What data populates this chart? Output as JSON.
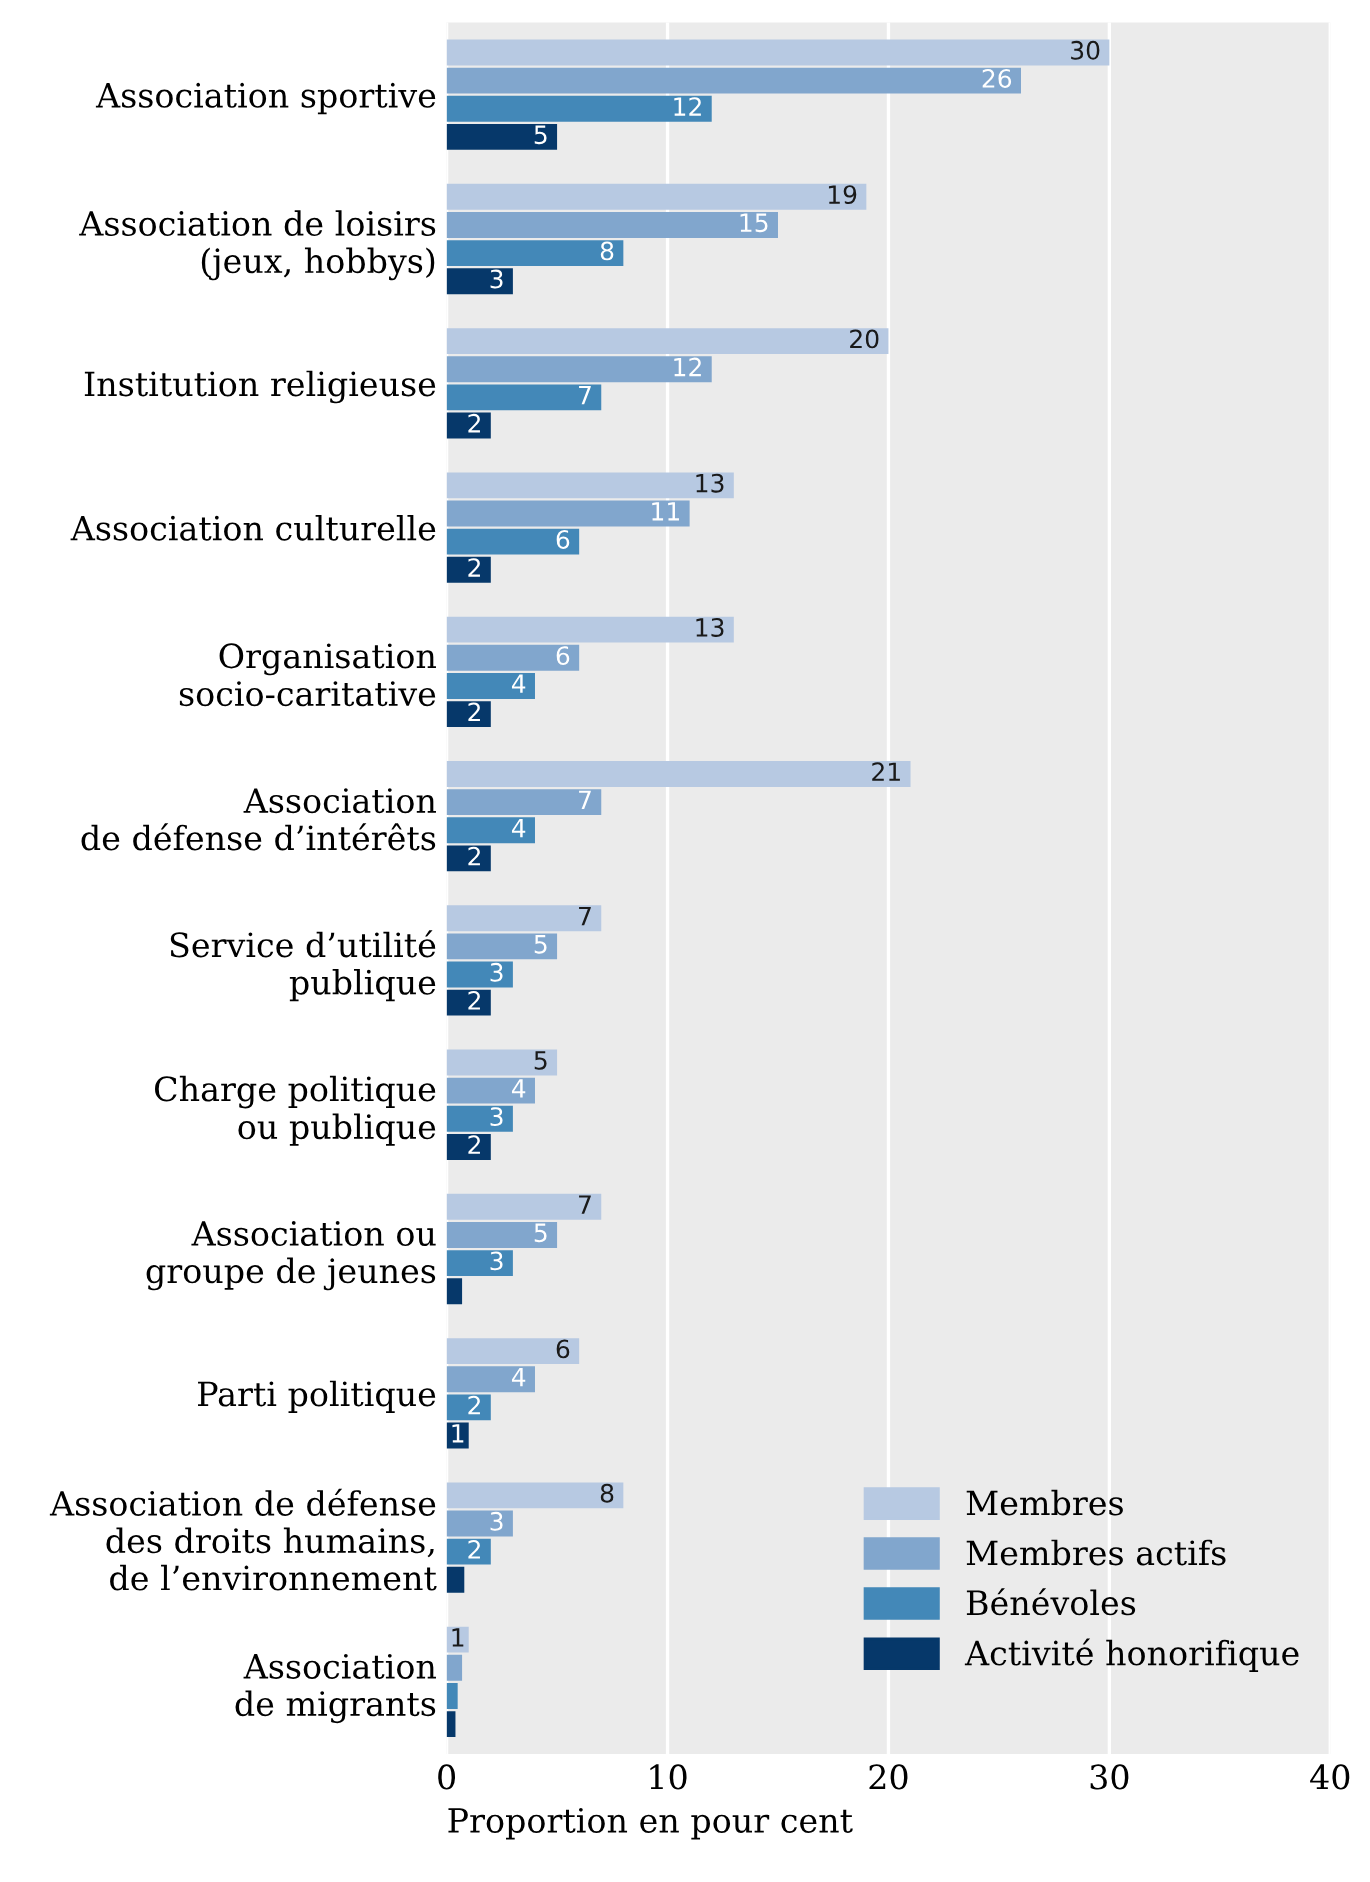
{
  "chart_data": {
    "type": "bar",
    "orientation": "horizontal",
    "xlabel": "Proportion en pour cent",
    "categories": [
      "Association sportive",
      "Association de loisirs\n(jeux, hobbys)",
      "Institution religieuse",
      "Association culturelle",
      "Organisation\nsocio-caritative",
      "Association\nde défense d’intérêts",
      "Service d’utilité\npublique",
      "Charge politique\nou publique",
      "Association ou\ngroupe de jeunes",
      "Parti politique",
      "Association de défense\ndes droits humains,\nde l’environnement",
      "Association\nde migrants"
    ],
    "series": [
      {
        "name": "Membres",
        "color": "#b7c9e2",
        "values": [
          30,
          19,
          20,
          13,
          13,
          21,
          7,
          5,
          7,
          6,
          8,
          1
        ],
        "value_labels": [
          "30",
          "19",
          "20",
          "13",
          "13",
          "21",
          "7",
          "5",
          "7",
          "6",
          "8",
          "1"
        ]
      },
      {
        "name": "Membres actifs",
        "color": "#81a6cd",
        "values": [
          26,
          15,
          12,
          11,
          6,
          7,
          5,
          4,
          5,
          4,
          3,
          0.7
        ],
        "value_labels": [
          "26",
          "15",
          "12",
          "11",
          "6",
          "7",
          "5",
          "4",
          "5",
          "4",
          "3",
          null
        ]
      },
      {
        "name": "Bénévoles",
        "color": "#4388b8",
        "values": [
          12,
          8,
          7,
          6,
          4,
          4,
          3,
          3,
          3,
          2,
          2,
          0.5
        ],
        "value_labels": [
          "12",
          "8",
          "7",
          "6",
          "4",
          "4",
          "3",
          "3",
          "3",
          "2",
          "2",
          null
        ]
      },
      {
        "name": "Activité honorifique",
        "color": "#06386a",
        "values": [
          5,
          3,
          2,
          2,
          2,
          2,
          2,
          2,
          0.7,
          1,
          0.8,
          0.4
        ],
        "value_labels": [
          "5",
          "3",
          "2",
          "2",
          "2",
          "2",
          "2",
          "2",
          null,
          "1",
          null,
          null
        ]
      }
    ],
    "xlim": [
      0,
      40
    ],
    "xticks": [
      0,
      10,
      20,
      30,
      40
    ],
    "grid": "x",
    "legend": "bottom right"
  }
}
